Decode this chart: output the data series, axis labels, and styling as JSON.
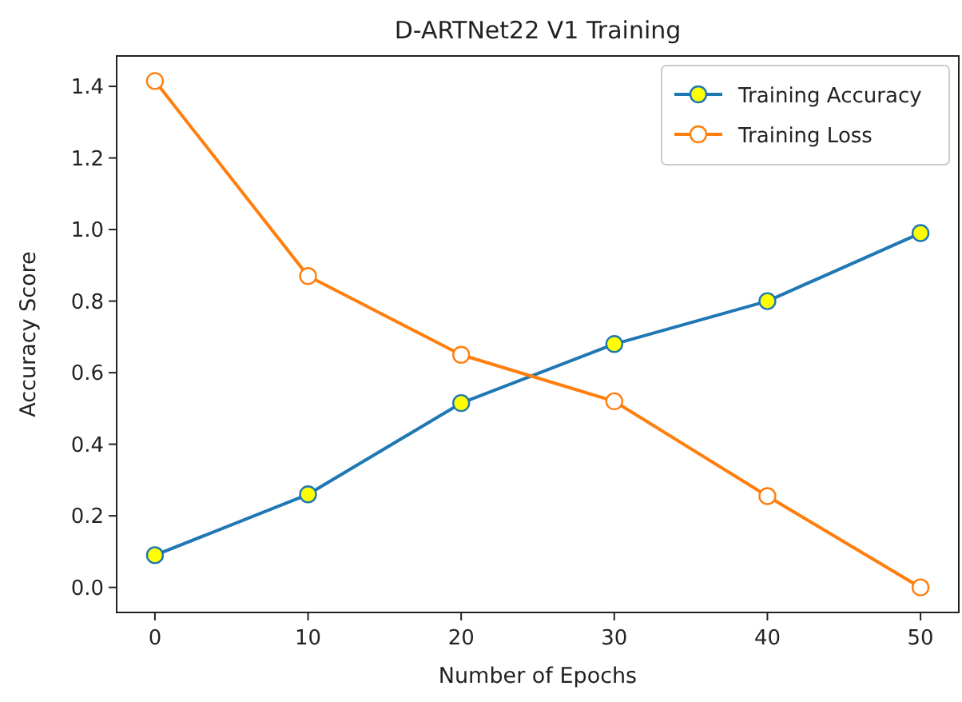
{
  "chart_data": {
    "type": "line",
    "title": "D-ARTNet22 V1 Training",
    "xlabel": "Number of Epochs",
    "ylabel": "Accuracy Score",
    "x": [
      0,
      10,
      20,
      30,
      40,
      50
    ],
    "series": [
      {
        "name": "Training Accuracy",
        "color": "#1f77b4",
        "values": [
          0.09,
          0.26,
          0.515,
          0.68,
          0.8,
          0.99
        ]
      },
      {
        "name": "Training Loss",
        "color": "#ff7f0e",
        "values": [
          1.415,
          0.87,
          0.65,
          0.52,
          0.255,
          0.0
        ]
      }
    ],
    "xlim": [
      -2.5,
      52.5
    ],
    "xticks": [
      0,
      10,
      20,
      30,
      40,
      50
    ],
    "ylim": [
      -0.07,
      1.485
    ],
    "yticks": [
      {
        "value": 0,
        "label": "0.0"
      },
      {
        "value": 0.2,
        "label": "0.2"
      },
      {
        "value": 0.4,
        "label": "0.4"
      },
      {
        "value": 0.6,
        "label": "0.6"
      },
      {
        "value": 0.8,
        "label": "0.8"
      },
      {
        "value": 1,
        "label": "1.0"
      },
      {
        "value": 1.2,
        "label": "1.2"
      },
      {
        "value": 1.4,
        "label": "1.4"
      }
    ],
    "marker": "circle",
    "line_style": "solid",
    "grid": false,
    "legend": "top right"
  }
}
